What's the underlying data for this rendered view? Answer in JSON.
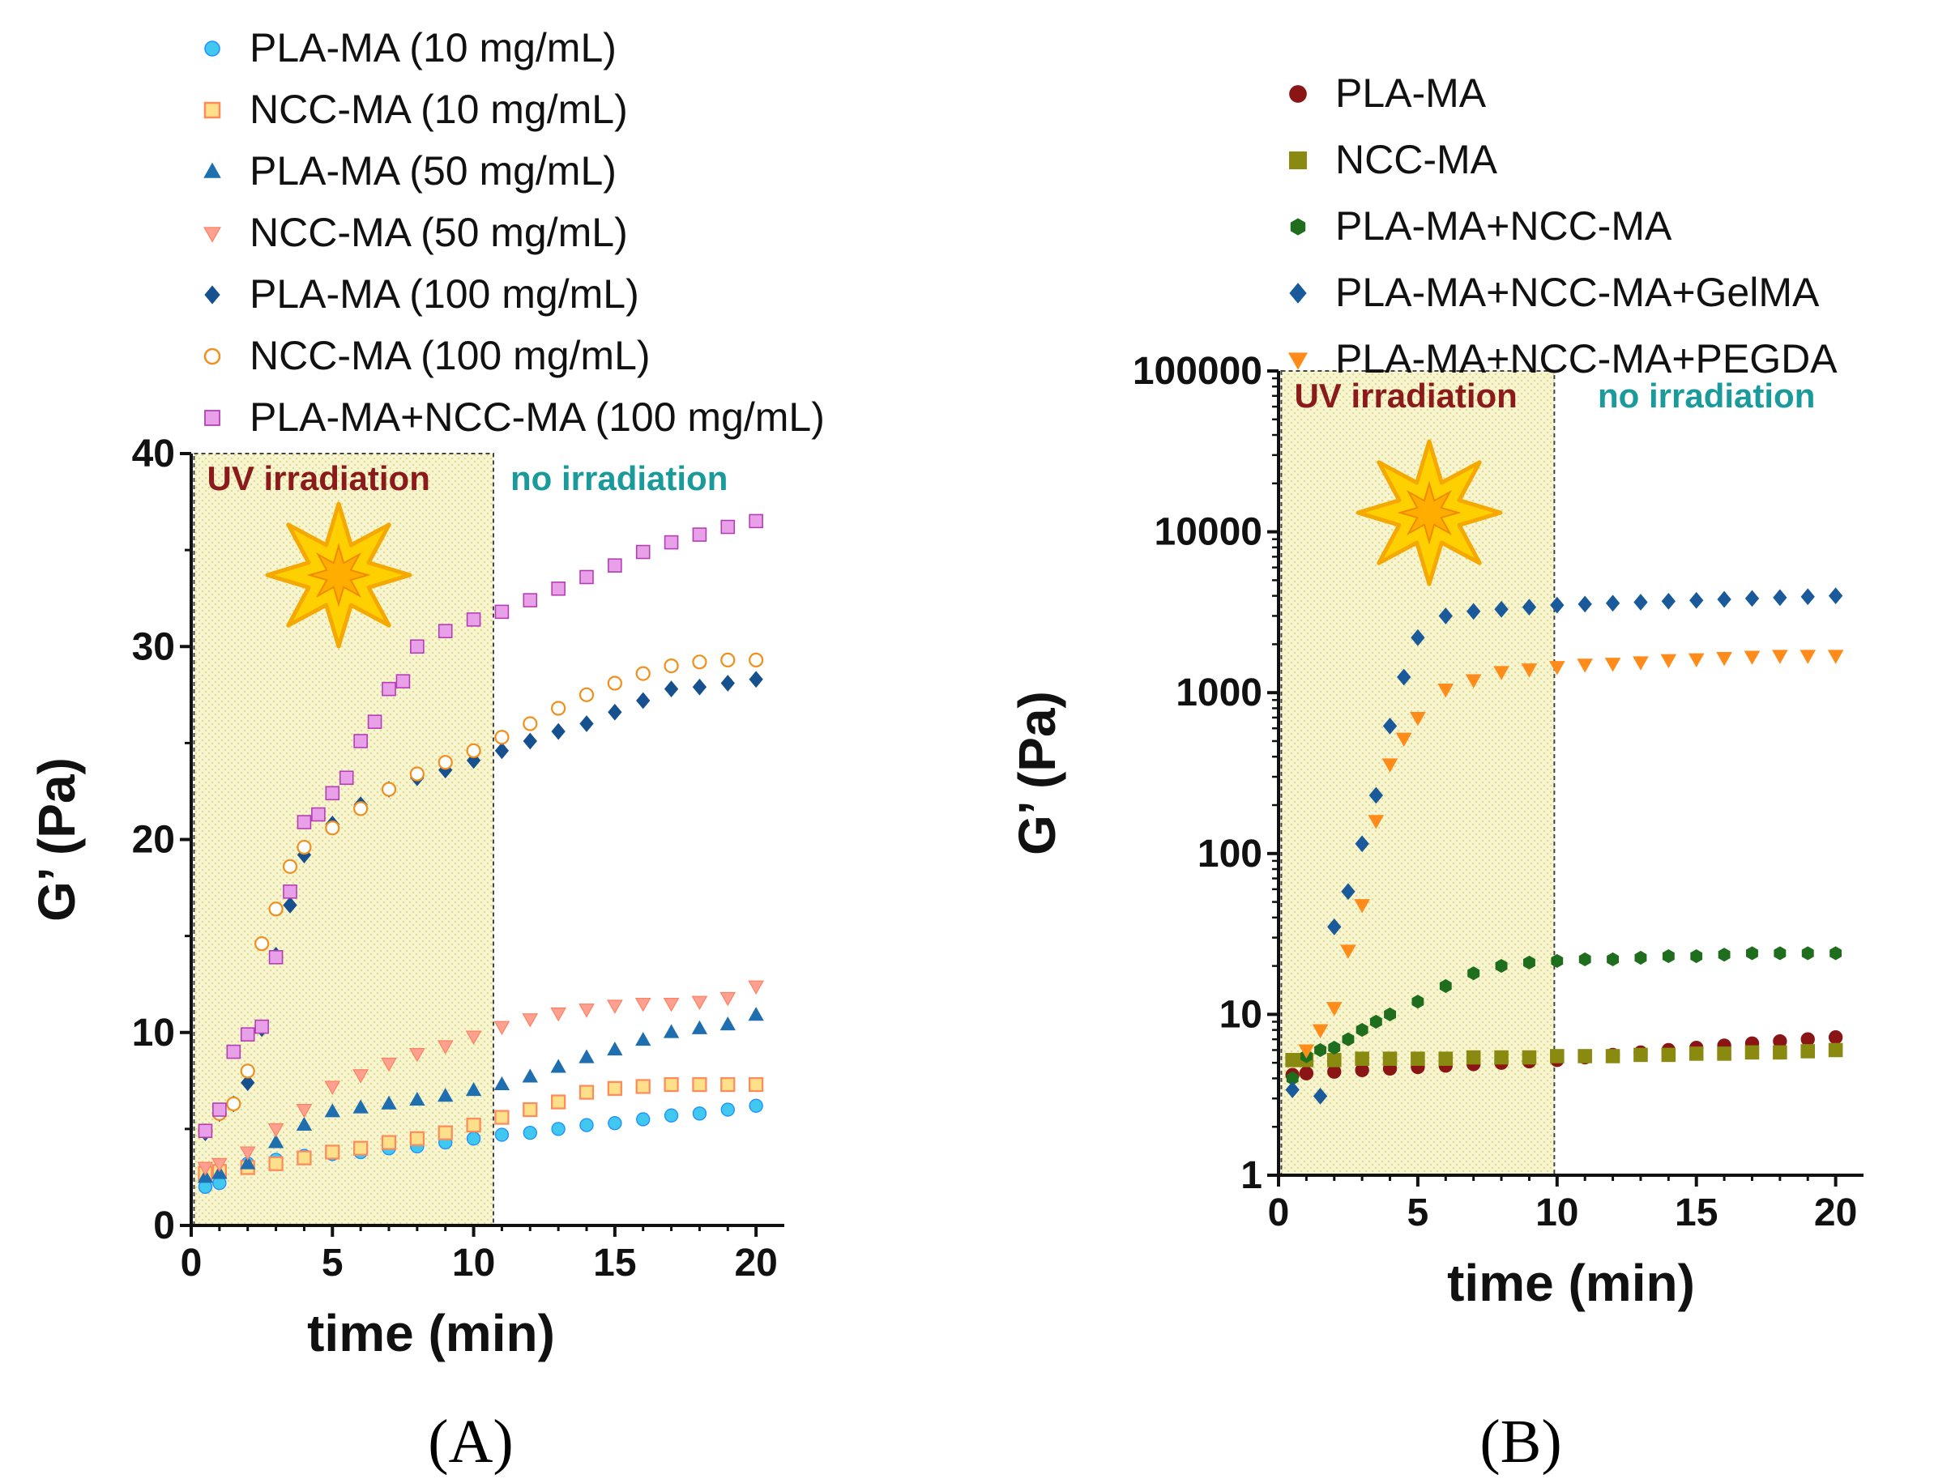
{
  "chart_data": [
    {
      "type": "scatter",
      "panel_label": "(A)",
      "xlabel": "time (min)",
      "ylabel": "G’ (Pa)",
      "xlim": [
        0,
        21
      ],
      "ylim": [
        0,
        40
      ],
      "y_scale": "linear",
      "x_ticks": [
        "0",
        "5",
        "10",
        "15",
        "20"
      ],
      "y_ticks": [
        "0",
        "10",
        "20",
        "30",
        "40"
      ],
      "shaded_region": {
        "label": "UV irradiation",
        "x_range": [
          0.1,
          10.7
        ],
        "color": "#8b1a1a"
      },
      "annotation": {
        "label": "no irradiation",
        "color": "#1a9a9a"
      },
      "legend_placement": "top",
      "series": [
        {
          "name": "PLA-MA (10 mg/mL)",
          "marker": "circle",
          "color": "#1e90ff",
          "fill": "#40c8f0",
          "x": [
            0.5,
            1,
            2,
            3,
            4,
            5,
            6,
            7,
            8,
            9,
            10,
            11,
            12,
            13,
            14,
            15,
            16,
            17,
            18,
            19,
            20
          ],
          "y": [
            2.0,
            2.2,
            3.2,
            3.4,
            3.6,
            3.7,
            3.8,
            4.0,
            4.1,
            4.3,
            4.5,
            4.7,
            4.8,
            5.0,
            5.2,
            5.3,
            5.5,
            5.7,
            5.8,
            6.0,
            6.2
          ]
        },
        {
          "name": "NCC-MA (10 mg/mL)",
          "marker": "square-open",
          "color": "#ff8a5a",
          "fill": "#ffe08a",
          "x": [
            0.5,
            1,
            2,
            3,
            4,
            5,
            6,
            7,
            8,
            9,
            10,
            11,
            12,
            13,
            14,
            15,
            16,
            17,
            18,
            19,
            20
          ],
          "y": [
            2.7,
            2.8,
            3.0,
            3.2,
            3.5,
            3.8,
            4.0,
            4.3,
            4.5,
            4.8,
            5.2,
            5.6,
            6.0,
            6.4,
            6.9,
            7.1,
            7.2,
            7.3,
            7.3,
            7.3,
            7.3
          ]
        },
        {
          "name": "PLA-MA (50 mg/mL)",
          "marker": "triangle-up",
          "color": "#1f6fb0",
          "x": [
            0.5,
            1,
            2,
            3,
            4,
            5,
            6,
            7,
            8,
            9,
            10,
            11,
            12,
            13,
            14,
            15,
            16,
            17,
            18,
            19,
            20
          ],
          "y": [
            2.5,
            2.7,
            3.2,
            4.3,
            5.2,
            5.9,
            6.1,
            6.3,
            6.5,
            6.7,
            7.0,
            7.3,
            7.7,
            8.2,
            8.7,
            9.1,
            9.6,
            10.0,
            10.2,
            10.4,
            10.9
          ]
        },
        {
          "name": "NCC-MA (50 mg/mL)",
          "marker": "triangle-down",
          "color": "#ff8060",
          "fill": "#ffa090",
          "x": [
            0.5,
            1,
            2,
            3,
            4,
            5,
            6,
            7,
            8,
            9,
            10,
            11,
            12,
            13,
            14,
            15,
            16,
            17,
            18,
            19,
            20
          ],
          "y": [
            3.0,
            3.2,
            3.8,
            5.0,
            6.0,
            7.2,
            7.8,
            8.4,
            8.9,
            9.3,
            9.8,
            10.3,
            10.7,
            11.0,
            11.2,
            11.4,
            11.5,
            11.5,
            11.6,
            11.8,
            12.4
          ]
        },
        {
          "name": "PLA-MA (100 mg/mL)",
          "marker": "diamond",
          "color": "#17508f",
          "x": [
            0.5,
            1,
            1.5,
            2,
            2.5,
            3,
            3.5,
            4,
            5,
            6,
            7,
            8,
            9,
            10,
            11,
            12,
            13,
            14,
            15,
            16,
            17,
            18,
            19,
            20
          ],
          "y": [
            4.8,
            5.8,
            6.3,
            7.4,
            10.2,
            14.0,
            16.6,
            19.2,
            20.8,
            21.8,
            22.6,
            23.2,
            23.6,
            24.1,
            24.6,
            25.1,
            25.6,
            26.0,
            26.6,
            27.2,
            27.8,
            27.9,
            28.1,
            28.3
          ]
        },
        {
          "name": "NCC-MA (100 mg/mL)",
          "marker": "circle-open",
          "color": "#f0901e",
          "x": [
            0.5,
            1,
            1.5,
            2,
            2.5,
            3,
            3.5,
            4,
            5,
            6,
            7,
            8,
            9,
            10,
            11,
            12,
            13,
            14,
            15,
            16,
            17,
            18,
            19,
            20
          ],
          "y": [
            4.9,
            5.8,
            6.3,
            8.0,
            14.6,
            16.4,
            18.6,
            19.6,
            20.6,
            21.6,
            22.6,
            23.4,
            24.0,
            24.6,
            25.3,
            26.0,
            26.8,
            27.5,
            28.1,
            28.6,
            29.0,
            29.2,
            29.3,
            29.3
          ]
        },
        {
          "name": "PLA-MA+NCC-MA (100 mg/mL)",
          "marker": "square",
          "color": "#b43cb4",
          "fill": "#e8a0e8",
          "x": [
            0.5,
            1,
            1.5,
            2,
            2.5,
            3,
            3.5,
            4,
            4.5,
            5,
            5.5,
            6,
            6.5,
            7,
            7.5,
            8,
            9,
            10,
            11,
            12,
            13,
            14,
            15,
            16,
            17,
            18,
            19,
            20
          ],
          "y": [
            4.9,
            6.0,
            9.0,
            9.9,
            10.3,
            13.9,
            17.3,
            20.9,
            21.3,
            22.4,
            23.2,
            25.1,
            26.1,
            27.8,
            28.2,
            30.0,
            30.8,
            31.4,
            31.8,
            32.4,
            33.0,
            33.6,
            34.2,
            34.9,
            35.4,
            35.8,
            36.2,
            36.5
          ]
        }
      ]
    },
    {
      "type": "scatter",
      "panel_label": "(B)",
      "xlabel": "time (min)",
      "ylabel": "G’ (Pa)",
      "xlim": [
        0,
        21
      ],
      "ylim": [
        1,
        100000
      ],
      "y_scale": "log",
      "x_ticks": [
        "0",
        "5",
        "10",
        "15",
        "20"
      ],
      "y_ticks": [
        "1",
        "10",
        "100",
        "1000",
        "10000",
        "100000"
      ],
      "shaded_region": {
        "label": "UV irradiation",
        "x_range": [
          0.1,
          9.9
        ],
        "color": "#8b1a1a"
      },
      "annotation": {
        "label": "no irradiation",
        "color": "#1a9a9a"
      },
      "legend_placement": "top",
      "series": [
        {
          "name": "PLA-MA",
          "marker": "circle",
          "color": "#8b1414",
          "x": [
            0.5,
            1,
            2,
            3,
            4,
            5,
            6,
            7,
            8,
            9,
            10,
            11,
            12,
            13,
            14,
            15,
            16,
            17,
            18,
            19,
            20
          ],
          "y": [
            4.2,
            4.3,
            4.4,
            4.5,
            4.6,
            4.7,
            4.8,
            4.9,
            5.0,
            5.1,
            5.2,
            5.4,
            5.6,
            5.8,
            6.0,
            6.2,
            6.4,
            6.6,
            6.8,
            7.0,
            7.2
          ]
        },
        {
          "name": "NCC-MA",
          "marker": "square",
          "color": "#8a8a10",
          "x": [
            0.5,
            1,
            2,
            3,
            4,
            5,
            6,
            7,
            8,
            9,
            10,
            11,
            12,
            13,
            14,
            15,
            16,
            17,
            18,
            19,
            20
          ],
          "y": [
            5.2,
            5.2,
            5.2,
            5.3,
            5.3,
            5.3,
            5.3,
            5.4,
            5.4,
            5.4,
            5.5,
            5.5,
            5.5,
            5.6,
            5.6,
            5.7,
            5.7,
            5.8,
            5.8,
            5.9,
            6.0
          ]
        },
        {
          "name": "PLA-MA+NCC-MA",
          "marker": "hexagon",
          "color": "#1e6e1e",
          "x": [
            0.5,
            1,
            1.5,
            2,
            2.5,
            3,
            3.5,
            4,
            5,
            6,
            7,
            8,
            9,
            10,
            11,
            12,
            13,
            14,
            15,
            16,
            17,
            18,
            19,
            20
          ],
          "y": [
            4.0,
            5.5,
            6.0,
            6.2,
            7.0,
            8.0,
            9.0,
            10.0,
            12.0,
            15.0,
            18.0,
            20.0,
            21.0,
            21.5,
            22.0,
            22.0,
            22.5,
            23.0,
            23.0,
            23.5,
            24.0,
            24.0,
            24.0,
            24.0
          ]
        },
        {
          "name": "PLA-MA+NCC-MA+GelMA",
          "marker": "diamond",
          "color": "#1a5a9a",
          "x": [
            0.5,
            1.5,
            2,
            2.5,
            3,
            3.5,
            4,
            4.5,
            5,
            6,
            7,
            8,
            9,
            10,
            11,
            12,
            13,
            14,
            15,
            16,
            17,
            18,
            19,
            20
          ],
          "y": [
            3.4,
            3.1,
            35,
            58,
            115,
            230,
            620,
            1250,
            2200,
            3000,
            3200,
            3300,
            3400,
            3500,
            3550,
            3600,
            3650,
            3700,
            3750,
            3800,
            3850,
            3900,
            3950,
            4000
          ]
        },
        {
          "name": "PLA-MA+NCC-MA+PEGDA",
          "marker": "triangle-down",
          "color": "#ff8c1a",
          "x": [
            1,
            1.5,
            2,
            2.5,
            3,
            3.5,
            4,
            4.5,
            5,
            6,
            7,
            8,
            9,
            10,
            11,
            12,
            13,
            14,
            15,
            16,
            17,
            18,
            19,
            20
          ],
          "y": [
            6.0,
            8.0,
            11,
            25,
            48,
            160,
            360,
            520,
            700,
            1050,
            1200,
            1350,
            1400,
            1450,
            1500,
            1520,
            1550,
            1600,
            1620,
            1650,
            1680,
            1700,
            1700,
            1700
          ]
        }
      ]
    }
  ]
}
